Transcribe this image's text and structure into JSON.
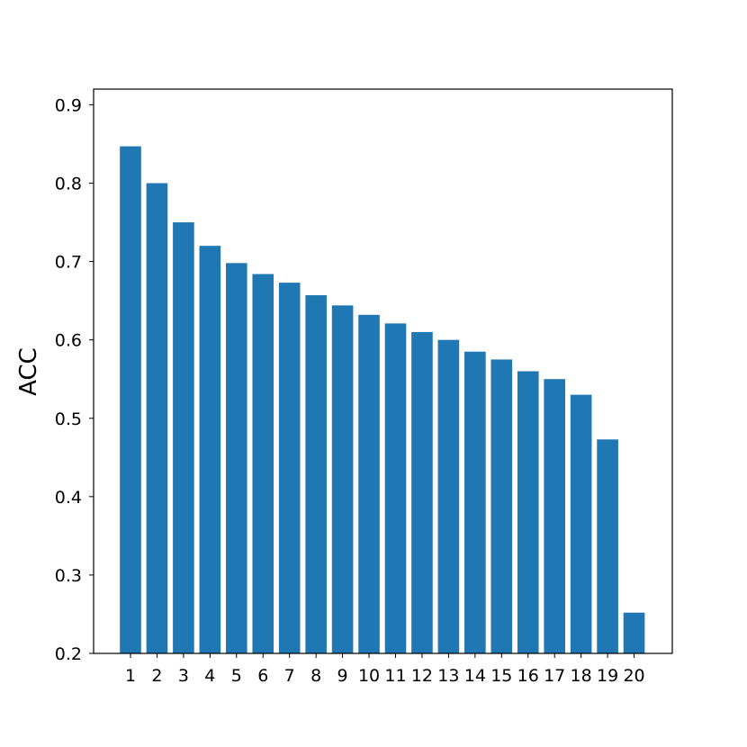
{
  "chart_data": {
    "type": "bar",
    "title": "",
    "xlabel": "",
    "ylabel": "ACC",
    "categories": [
      "1",
      "2",
      "3",
      "4",
      "5",
      "6",
      "7",
      "8",
      "9",
      "10",
      "11",
      "12",
      "13",
      "14",
      "15",
      "16",
      "17",
      "18",
      "19",
      "20"
    ],
    "values": [
      0.847,
      0.8,
      0.75,
      0.72,
      0.698,
      0.684,
      0.673,
      0.657,
      0.644,
      0.632,
      0.621,
      0.61,
      0.6,
      0.585,
      0.575,
      0.56,
      0.55,
      0.53,
      0.473,
      0.252
    ],
    "ylim": [
      0.2,
      0.92
    ],
    "yticks": [
      "0.2",
      "0.3",
      "0.4",
      "0.5",
      "0.6",
      "0.7",
      "0.8",
      "0.9"
    ],
    "bar_color": "#1f77b4",
    "grid": false,
    "legend": "none"
  }
}
